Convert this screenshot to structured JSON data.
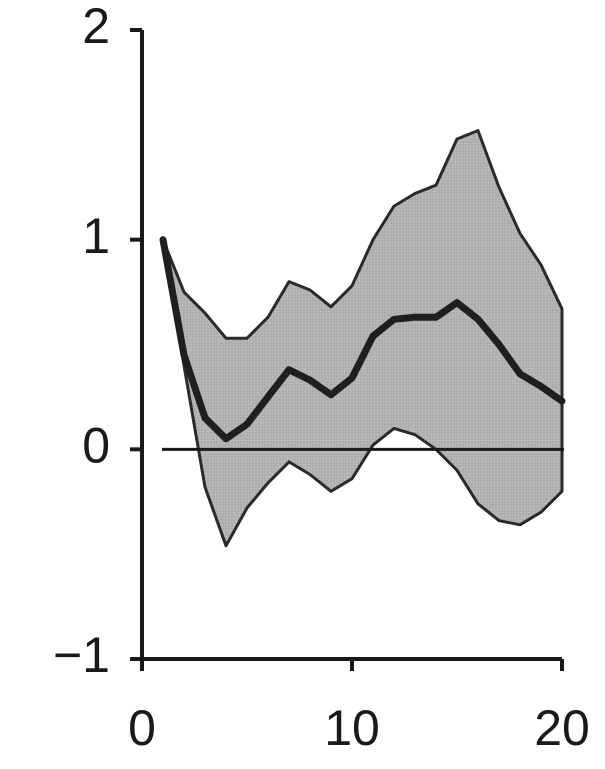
{
  "chart_data": {
    "type": "area",
    "title": "",
    "xlabel": "",
    "ylabel": "",
    "xlim": [
      0,
      20
    ],
    "ylim": [
      -1,
      2
    ],
    "xticks": [
      0,
      10,
      20
    ],
    "yticks": [
      2,
      1,
      0,
      -1
    ],
    "ytick_labels": [
      "2",
      "1",
      "0",
      "−1"
    ],
    "xtick_labels": [
      "0",
      "10",
      "20"
    ],
    "grid": false,
    "legend": "none",
    "reference_line": 0,
    "x": [
      1,
      2,
      3,
      4,
      5,
      6,
      7,
      8,
      9,
      10,
      11,
      12,
      13,
      14,
      15,
      16,
      17,
      18,
      19,
      20
    ],
    "series": [
      {
        "values": [
          1.0,
          0.45,
          0.15,
          0.05,
          0.12,
          0.25,
          0.38,
          0.33,
          0.26,
          0.34,
          0.54,
          0.62,
          0.63,
          0.63,
          0.7,
          0.62,
          0.5,
          0.36,
          0.3,
          0.23
        ]
      }
    ],
    "band_upper": [
      1.0,
      0.75,
      0.65,
      0.53,
      0.53,
      0.63,
      0.8,
      0.76,
      0.68,
      0.78,
      1.0,
      1.16,
      1.22,
      1.26,
      1.48,
      1.52,
      1.25,
      1.03,
      0.88,
      0.67
    ],
    "band_lower": [
      1.0,
      0.4,
      -0.18,
      -0.46,
      -0.28,
      -0.16,
      -0.06,
      -0.12,
      -0.2,
      -0.14,
      0.02,
      0.1,
      0.07,
      0.0,
      -0.1,
      -0.26,
      -0.34,
      -0.36,
      -0.3,
      -0.2
    ],
    "colors": {
      "band_fill": "#b3b3b3",
      "band_edge": "#2a2a2a",
      "line": "#1f1f1f",
      "axis": "#1a1a1a"
    }
  }
}
